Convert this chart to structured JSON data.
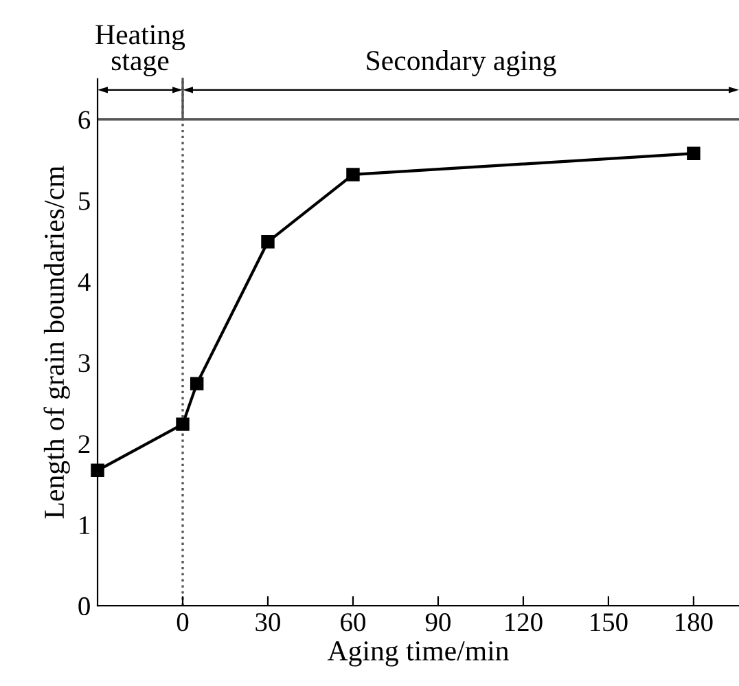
{
  "chart_data": {
    "type": "line",
    "xlabel": "Aging time/min",
    "ylabel": "Length of grain boundaries/cm",
    "x": [
      -30,
      0,
      5,
      30,
      60,
      180
    ],
    "series": [
      {
        "color": "#000000",
        "values": [
          1.67,
          2.24,
          2.74,
          4.49,
          5.32,
          5.58
        ]
      }
    ],
    "marker": "square",
    "line_style": "solid",
    "grid": false,
    "legend": false,
    "xlim": [
      -30,
      196
    ],
    "xticks": [
      0,
      30,
      60,
      90,
      120,
      150,
      180
    ],
    "ylim": [
      0,
      6.5
    ],
    "yticks": [
      0,
      1,
      2,
      3,
      4,
      5,
      6
    ],
    "ref_lines": [
      {
        "axis": "y",
        "value": 6,
        "color": "#555555",
        "line_style": "solid"
      },
      {
        "axis": "x",
        "value": 0,
        "color": "#555555",
        "line_style": "dotted"
      }
    ],
    "annotations": [
      "Heating\nstage",
      "Secondary aging"
    ]
  }
}
